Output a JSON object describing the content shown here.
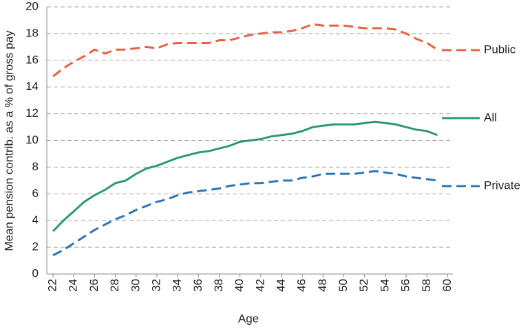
{
  "chart_data": {
    "type": "line",
    "x_label": "Age",
    "y_label": "Mean pension contrib. as a % of gross pay",
    "x": [
      22,
      23,
      24,
      25,
      26,
      27,
      28,
      29,
      30,
      31,
      32,
      33,
      34,
      35,
      36,
      37,
      38,
      39,
      40,
      41,
      42,
      43,
      44,
      45,
      46,
      47,
      48,
      49,
      50,
      51,
      52,
      53,
      54,
      55,
      56,
      57,
      58,
      59
    ],
    "series": [
      {
        "name": "Public",
        "color": "#ec5f40",
        "dash": true,
        "values": [
          14.8,
          15.4,
          15.9,
          16.3,
          16.8,
          16.5,
          16.8,
          16.8,
          16.9,
          17.0,
          16.9,
          17.2,
          17.3,
          17.3,
          17.3,
          17.3,
          17.5,
          17.5,
          17.7,
          17.9,
          18.0,
          18.1,
          18.1,
          18.2,
          18.4,
          18.7,
          18.6,
          18.6,
          18.6,
          18.5,
          18.4,
          18.4,
          18.4,
          18.3,
          18.0,
          17.6,
          17.3,
          16.8
        ]
      },
      {
        "name": "All",
        "color": "#2a9a6e",
        "dash": false,
        "values": [
          3.2,
          4.0,
          4.7,
          5.4,
          5.9,
          6.3,
          6.8,
          7.0,
          7.5,
          7.9,
          8.1,
          8.4,
          8.7,
          8.9,
          9.1,
          9.2,
          9.4,
          9.6,
          9.9,
          10.0,
          10.1,
          10.3,
          10.4,
          10.5,
          10.7,
          11.0,
          11.1,
          11.2,
          11.2,
          11.2,
          11.3,
          11.4,
          11.3,
          11.2,
          11.0,
          10.8,
          10.7,
          10.4
        ]
      },
      {
        "name": "Private",
        "color": "#2e75b6",
        "dash": true,
        "values": [
          1.4,
          1.8,
          2.3,
          2.8,
          3.3,
          3.7,
          4.1,
          4.4,
          4.8,
          5.1,
          5.4,
          5.6,
          5.9,
          6.1,
          6.2,
          6.3,
          6.4,
          6.6,
          6.7,
          6.8,
          6.8,
          6.9,
          7.0,
          7.0,
          7.2,
          7.3,
          7.5,
          7.5,
          7.5,
          7.5,
          7.6,
          7.7,
          7.6,
          7.5,
          7.3,
          7.2,
          7.1,
          7.0
        ]
      }
    ],
    "xlim": [
      21.4,
      60.5
    ],
    "xticks": [
      22,
      24,
      26,
      28,
      30,
      32,
      34,
      36,
      38,
      40,
      42,
      44,
      46,
      48,
      50,
      52,
      54,
      56,
      58,
      60
    ],
    "ylim": [
      0,
      20
    ],
    "yticks": [
      0,
      2,
      4,
      6,
      8,
      10,
      12,
      14,
      16,
      18,
      20
    ],
    "grid": true,
    "legend": "right"
  }
}
